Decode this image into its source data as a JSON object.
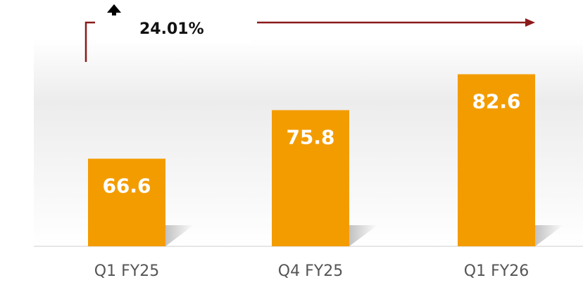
{
  "chart_data": {
    "type": "bar",
    "categories": [
      "Q1 FY25",
      "Q4 FY25",
      "Q1 FY26"
    ],
    "values": [
      66.6,
      75.8,
      82.6
    ],
    "color": "#f39c00",
    "ylim": [
      50,
      85
    ],
    "annotation": "24.01%"
  }
}
